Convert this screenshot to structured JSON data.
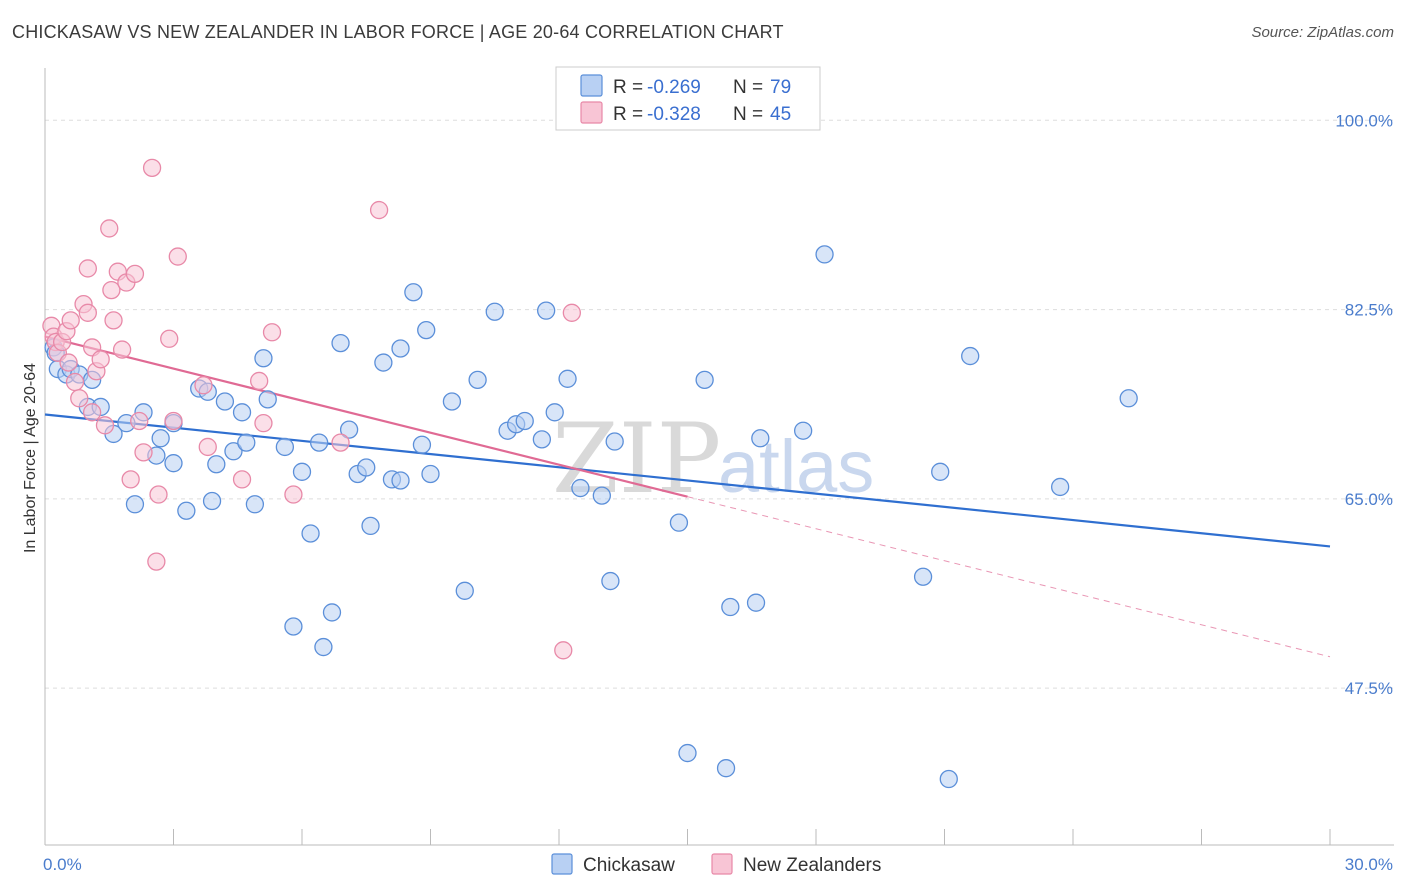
{
  "header": {
    "title": "CHICKASAW VS NEW ZEALANDER IN LABOR FORCE | AGE 20-64 CORRELATION CHART",
    "source": "Source: ZipAtlas.com"
  },
  "watermark": {
    "zip": "ZIP",
    "atlas": "atlas"
  },
  "colors": {
    "blue_fill": "#b8d0f3",
    "blue_stroke": "#5b8fd9",
    "blue_line": "#2f6fd0",
    "pink_fill": "#f8c5d5",
    "pink_stroke": "#e889a8",
    "pink_line": "#e06a94",
    "grid": "#dddddd",
    "axis_text": "#4a7ccc"
  },
  "chart_data": {
    "type": "scatter",
    "title": "CHICKASAW VS NEW ZEALANDER IN LABOR FORCE | AGE 20-64 CORRELATION CHART",
    "xlabel": "",
    "ylabel": "In Labor Force | Age 20-64",
    "xlim": [
      0,
      30
    ],
    "ylim": [
      33,
      104
    ],
    "x_tick_labels": [
      "0.0%",
      "30.0%"
    ],
    "y_ticks": [
      47.5,
      65.0,
      82.5,
      100.0
    ],
    "y_tick_labels": [
      "47.5%",
      "65.0%",
      "82.5%",
      "100.0%"
    ],
    "grid": "horizontal dashed",
    "legend_position": "top-center",
    "legend": [
      {
        "r_label": "R = ",
        "r_value": "-0.269",
        "n_label": "N = ",
        "n_value": "79"
      },
      {
        "r_label": "R = ",
        "r_value": "-0.328",
        "n_label": "N = ",
        "n_value": "45"
      }
    ],
    "bottom_legend": [
      "Chickasaw",
      "New Zealanders"
    ],
    "series": [
      {
        "name": "Chickasaw",
        "color": "#5b8fd9",
        "trend": {
          "x": [
            0,
            30
          ],
          "y": [
            72.8,
            60.6
          ]
        },
        "points": [
          [
            0.2,
            79.0
          ],
          [
            0.25,
            78.5
          ],
          [
            0.3,
            77.0
          ],
          [
            0.5,
            76.5
          ],
          [
            0.6,
            77.0
          ],
          [
            0.8,
            76.5
          ],
          [
            1.1,
            76.0
          ],
          [
            1.0,
            73.5
          ],
          [
            1.3,
            73.5
          ],
          [
            1.6,
            71.0
          ],
          [
            1.9,
            72.0
          ],
          [
            2.3,
            73.0
          ],
          [
            2.6,
            69.0
          ],
          [
            2.7,
            70.6
          ],
          [
            3.0,
            72.0
          ],
          [
            3.0,
            68.3
          ],
          [
            2.1,
            64.5
          ],
          [
            3.3,
            63.9
          ],
          [
            3.6,
            75.2
          ],
          [
            3.8,
            74.9
          ],
          [
            3.9,
            64.8
          ],
          [
            4.0,
            68.2
          ],
          [
            4.2,
            74.0
          ],
          [
            4.4,
            69.4
          ],
          [
            4.6,
            73.0
          ],
          [
            4.7,
            70.2
          ],
          [
            4.9,
            64.5
          ],
          [
            5.1,
            78.0
          ],
          [
            5.2,
            74.2
          ],
          [
            5.6,
            69.8
          ],
          [
            6.0,
            67.5
          ],
          [
            6.2,
            61.8
          ],
          [
            6.4,
            70.2
          ],
          [
            5.8,
            53.2
          ],
          [
            6.5,
            51.3
          ],
          [
            6.7,
            54.5
          ],
          [
            6.9,
            79.4
          ],
          [
            7.1,
            71.4
          ],
          [
            7.3,
            67.3
          ],
          [
            7.5,
            67.9
          ],
          [
            7.6,
            62.5
          ],
          [
            7.9,
            77.6
          ],
          [
            8.1,
            66.8
          ],
          [
            8.3,
            66.7
          ],
          [
            8.3,
            78.9
          ],
          [
            8.6,
            84.1
          ],
          [
            8.9,
            80.6
          ],
          [
            8.8,
            70.0
          ],
          [
            9.0,
            67.3
          ],
          [
            9.5,
            74.0
          ],
          [
            9.8,
            56.5
          ],
          [
            10.1,
            76.0
          ],
          [
            10.5,
            82.3
          ],
          [
            10.8,
            71.3
          ],
          [
            11.0,
            71.9
          ],
          [
            11.2,
            72.2
          ],
          [
            11.6,
            70.5
          ],
          [
            11.7,
            82.4
          ],
          [
            11.9,
            73.0
          ],
          [
            12.2,
            76.1
          ],
          [
            12.5,
            66.0
          ],
          [
            13.0,
            65.3
          ],
          [
            13.2,
            57.4
          ],
          [
            13.3,
            70.3
          ],
          [
            14.8,
            62.8
          ],
          [
            15.0,
            41.5
          ],
          [
            15.4,
            76.0
          ],
          [
            15.9,
            40.1
          ],
          [
            16.0,
            55.0
          ],
          [
            16.6,
            55.4
          ],
          [
            16.7,
            70.6
          ],
          [
            17.7,
            71.3
          ],
          [
            18.2,
            87.6
          ],
          [
            20.5,
            57.8
          ],
          [
            20.9,
            67.5
          ],
          [
            21.6,
            78.2
          ],
          [
            23.7,
            66.1
          ],
          [
            25.3,
            74.3
          ],
          [
            21.1,
            39.1
          ]
        ]
      },
      {
        "name": "New Zealanders",
        "color": "#e889a8",
        "trend": {
          "x": [
            0,
            15
          ],
          "y": [
            80.0,
            65.2
          ]
        },
        "trend_extension": {
          "x": [
            15,
            30
          ],
          "y": [
            65.2,
            50.4
          ]
        },
        "points": [
          [
            0.15,
            81.0
          ],
          [
            0.2,
            80.0
          ],
          [
            0.25,
            79.5
          ],
          [
            0.3,
            78.5
          ],
          [
            0.4,
            79.5
          ],
          [
            0.5,
            80.5
          ],
          [
            0.6,
            81.5
          ],
          [
            0.7,
            75.8
          ],
          [
            0.8,
            74.3
          ],
          [
            0.9,
            83.0
          ],
          [
            1.0,
            82.2
          ],
          [
            1.0,
            86.3
          ],
          [
            1.1,
            79.0
          ],
          [
            1.1,
            73.0
          ],
          [
            1.2,
            76.8
          ],
          [
            1.3,
            77.9
          ],
          [
            1.4,
            71.8
          ],
          [
            1.5,
            90.0
          ],
          [
            1.55,
            84.3
          ],
          [
            1.6,
            81.5
          ],
          [
            1.7,
            86.0
          ],
          [
            1.8,
            78.8
          ],
          [
            1.9,
            85.0
          ],
          [
            2.0,
            66.8
          ],
          [
            2.1,
            85.8
          ],
          [
            2.2,
            72.2
          ],
          [
            2.3,
            69.3
          ],
          [
            2.5,
            95.6
          ],
          [
            2.6,
            59.2
          ],
          [
            2.65,
            65.4
          ],
          [
            2.9,
            79.8
          ],
          [
            3.0,
            72.2
          ],
          [
            3.1,
            87.4
          ],
          [
            3.7,
            75.5
          ],
          [
            3.8,
            69.8
          ],
          [
            4.6,
            66.8
          ],
          [
            5.0,
            75.9
          ],
          [
            5.1,
            72.0
          ],
          [
            5.3,
            80.4
          ],
          [
            5.8,
            65.4
          ],
          [
            6.9,
            70.2
          ],
          [
            7.8,
            91.7
          ],
          [
            12.1,
            51.0
          ],
          [
            12.3,
            82.2
          ],
          [
            0.55,
            77.6
          ]
        ]
      }
    ]
  }
}
